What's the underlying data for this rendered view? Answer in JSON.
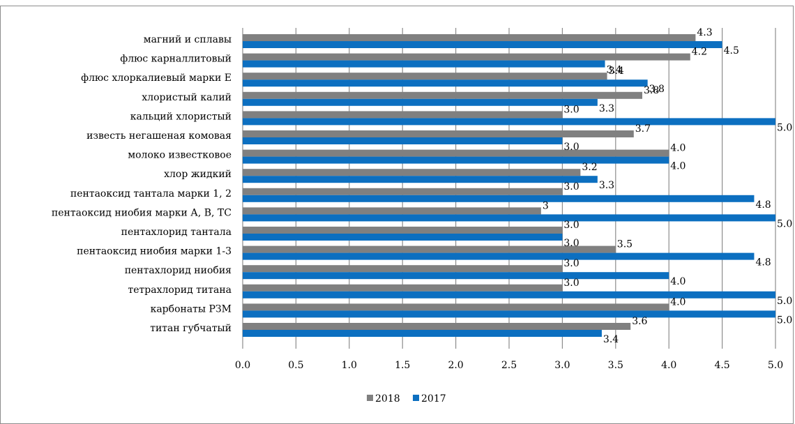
{
  "chart_data": {
    "type": "bar",
    "orientation": "horizontal",
    "title": "",
    "xlim": [
      0,
      5
    ],
    "x_ticks": [
      "0.0",
      "0.5",
      "1.0",
      "1.5",
      "2.0",
      "2.5",
      "3.0",
      "3.5",
      "4.0",
      "4.5",
      "5.0"
    ],
    "grid": true,
    "legend_position": "bottom",
    "categories": [
      "магний и сплавы",
      "флюс карналлитовый",
      "флюс хлоркалиевый марки Е",
      "хлористый калий",
      "кальций хлористый",
      "известь негашеная комовая",
      "молоко известковое",
      "хлор жидкий",
      "пентаоксид тантала марки 1, 2",
      "пентаоксид ниобия марки А, В, ТС",
      "пентахлорид тантала",
      "пентаоксид ниобия марки 1-3",
      "пентахлорид ниобия",
      "тетрахлорид титана",
      "карбонаты РЗМ",
      "титан губчатый"
    ],
    "series": [
      {
        "name": "2018",
        "color": "#808080",
        "values": [
          4.25,
          4.2,
          3.42,
          3.75,
          3.0,
          3.67,
          4.0,
          3.17,
          3.0,
          2.8,
          3.0,
          3.5,
          3.0,
          3.0,
          4.0,
          3.64
        ],
        "labels": [
          "4.3",
          "4.2",
          "3.4",
          "3.8",
          "3.0",
          "3.7",
          "4.0",
          "3.2",
          "3.0",
          "3",
          "3.0",
          "3.5",
          "3.0",
          "3.0",
          "4.0",
          "3.6"
        ]
      },
      {
        "name": "2017",
        "color": "#0c6fc0",
        "values": [
          4.5,
          3.4,
          3.8,
          3.33,
          5.0,
          3.0,
          4.0,
          3.33,
          4.8,
          5.0,
          3.0,
          4.8,
          4.0,
          5.0,
          5.0,
          3.37
        ],
        "labels": [
          "4.5",
          "3.4",
          "3.8",
          "3.3",
          "5.0",
          "3.0",
          "4.0",
          "3.3",
          "4.8",
          "5.0",
          "3.0",
          "4.8",
          "4.0",
          "5.0",
          "5.0",
          "3.4"
        ]
      }
    ]
  }
}
